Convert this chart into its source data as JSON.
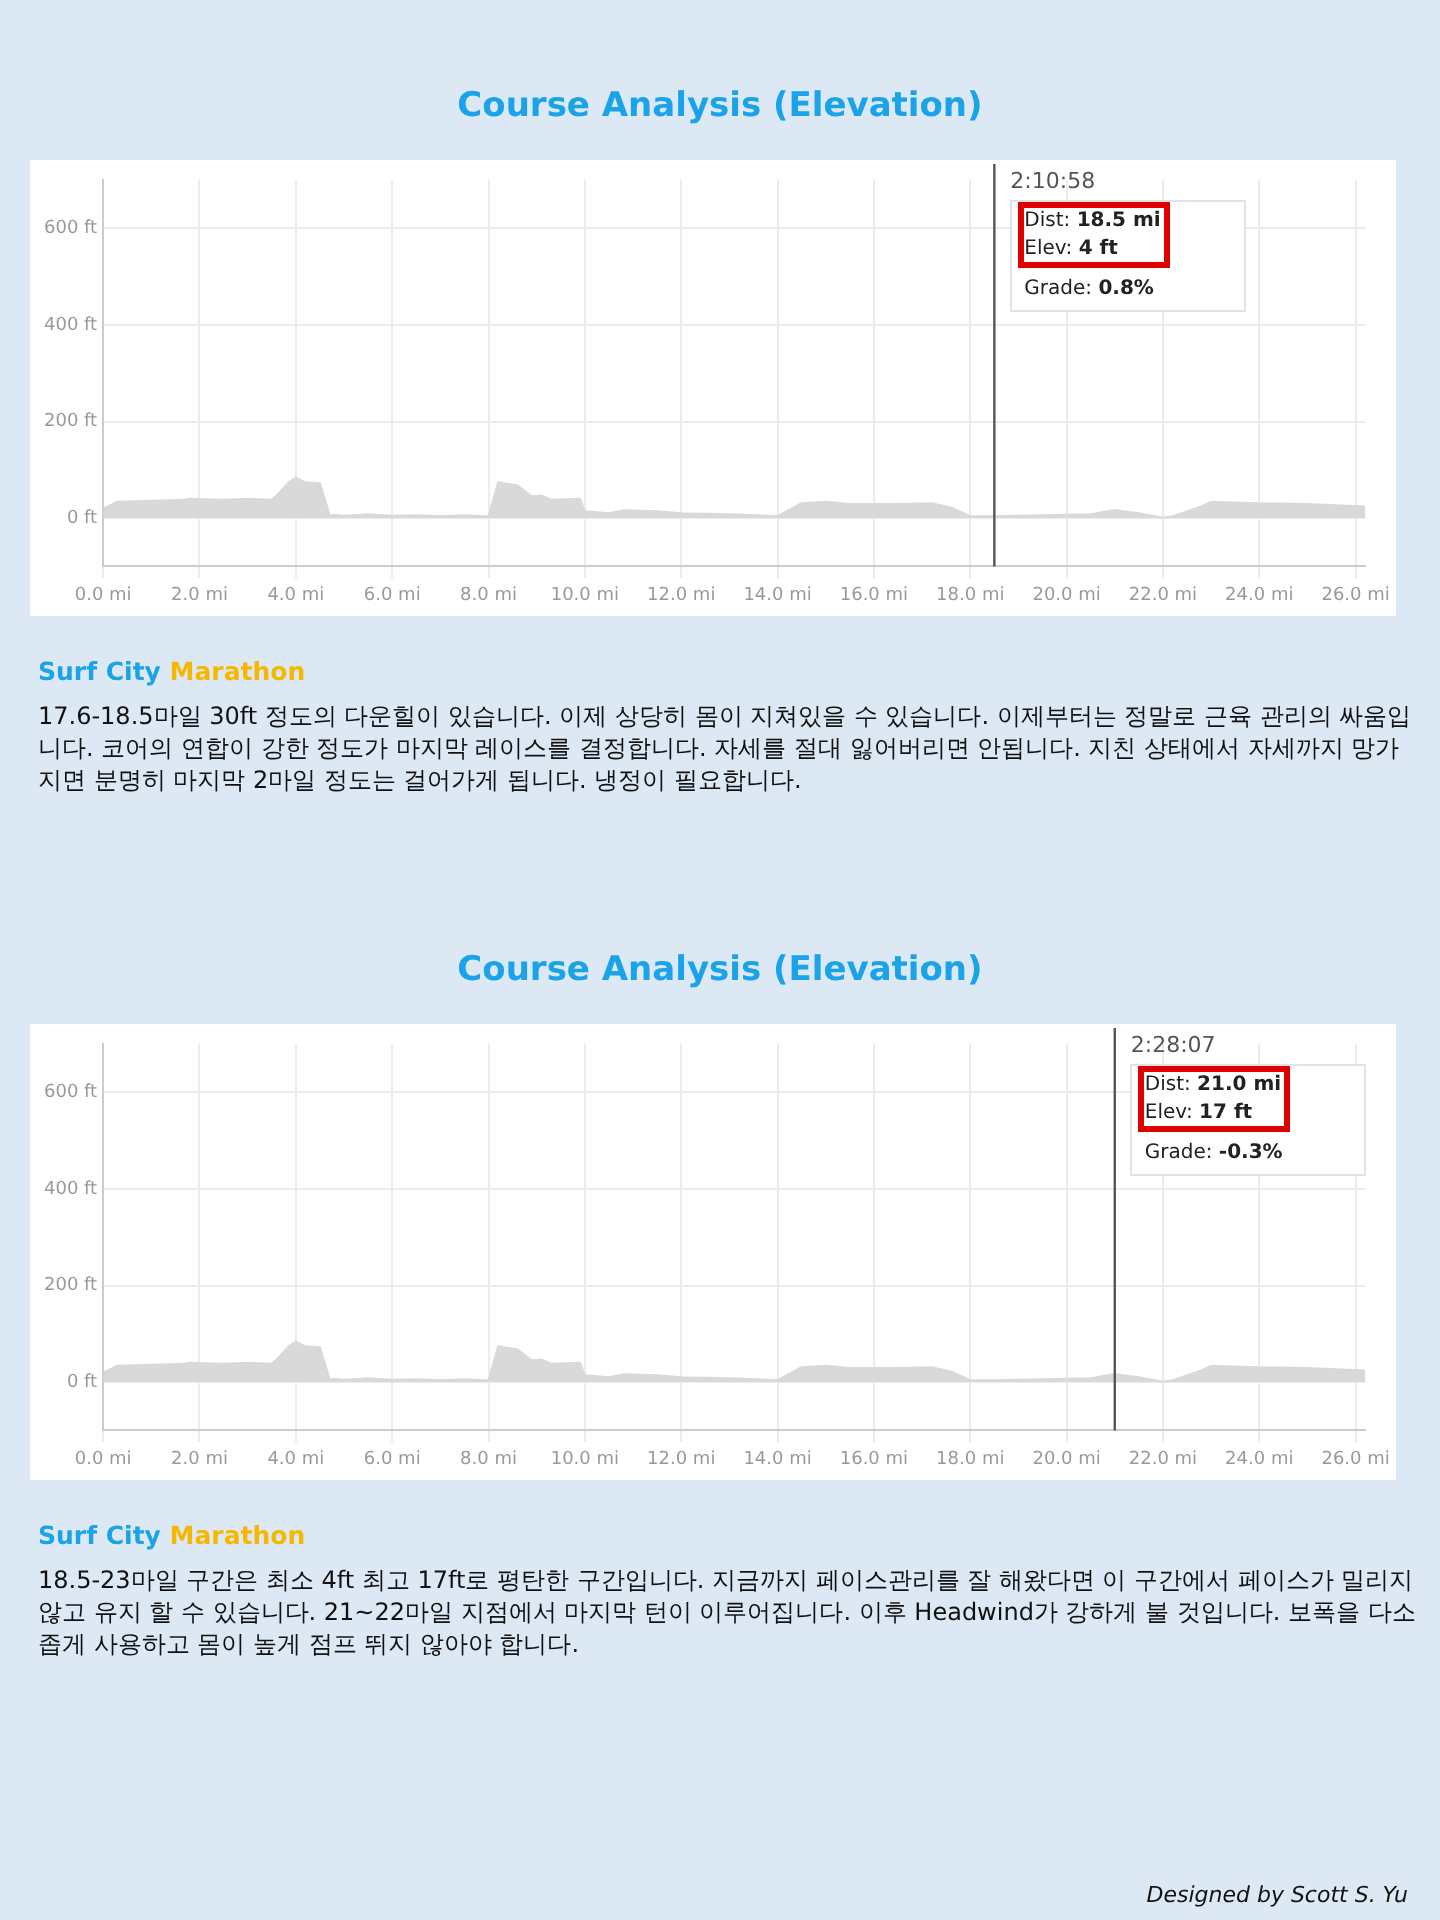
{
  "chart_data": [
    {
      "type": "area",
      "title": "Course Analysis (Elevation)",
      "x": [
        0,
        0.3,
        1.0,
        1.7,
        1.8,
        2.5,
        3.0,
        3.5,
        3.6,
        3.85,
        4.0,
        4.2,
        4.5,
        4.7,
        5.0,
        5.5,
        6.0,
        6.5,
        7.0,
        7.5,
        7.9,
        8.0,
        8.2,
        8.6,
        8.9,
        9.1,
        9.3,
        9.9,
        10.0,
        10.5,
        10.8,
        11.5,
        12.0,
        13.0,
        14.0,
        14.5,
        15.0,
        15.5,
        16.5,
        17.2,
        17.6,
        18.0,
        18.5,
        19.5,
        20.5,
        21.0,
        21.5,
        22.0,
        22.2,
        22.8,
        23.0,
        24.0,
        25.0,
        26.2
      ],
      "values": [
        20,
        34,
        36,
        38,
        40,
        38,
        40,
        38,
        47,
        74,
        84,
        74,
        72,
        7,
        5,
        8,
        5,
        6,
        4,
        6,
        4,
        4,
        74,
        68,
        45,
        47,
        38,
        40,
        14,
        10,
        16,
        14,
        10,
        8,
        4,
        31,
        34,
        29,
        29,
        31,
        22,
        4,
        4,
        6,
        8,
        17,
        10,
        1,
        4,
        24,
        34,
        31,
        29,
        24
      ],
      "color": "#d9d9d9",
      "xlim": [
        0,
        26.2
      ],
      "ylim": [
        -100,
        700
      ],
      "xticks": [
        {
          "value": 0,
          "label": "0.0 mi"
        },
        {
          "value": 2,
          "label": "2.0 mi"
        },
        {
          "value": 4,
          "label": "4.0 mi"
        },
        {
          "value": 6,
          "label": "6.0 mi"
        },
        {
          "value": 8,
          "label": "8.0 mi"
        },
        {
          "value": 10,
          "label": "10.0 mi"
        },
        {
          "value": 12,
          "label": "12.0 mi"
        },
        {
          "value": 14,
          "label": "14.0 mi"
        },
        {
          "value": 16,
          "label": "16.0 mi"
        },
        {
          "value": 18,
          "label": "18.0 mi"
        },
        {
          "value": 20,
          "label": "20.0 mi"
        },
        {
          "value": 22,
          "label": "22.0 mi"
        },
        {
          "value": 24,
          "label": "24.0 mi"
        },
        {
          "value": 26,
          "label": "26.0 mi"
        }
      ],
      "yticks": [
        {
          "value": 0,
          "label": "0 ft"
        },
        {
          "value": 200,
          "label": "200 ft"
        },
        {
          "value": 400,
          "label": "400 ft"
        },
        {
          "value": 600,
          "label": "600 ft"
        }
      ],
      "grid": true,
      "legend": false,
      "ref_lines": [
        {
          "axis": "x",
          "value": 18.5,
          "color": "#555555"
        }
      ],
      "annotations": [
        "2:10:58",
        "Dist: 18.5 mi",
        "Elev: 4 ft",
        "Grade: 0.8%",
        "Surf City",
        "Marathon",
        "17.6-18.5마일 30ft 정도의 다운힐이 있습니다. 이제 상당히 몸이 지쳐있을 수 있습니다. 이제부터는 정말로 근육 관리의 싸움입니다. 코어의 연합이 강한 정도가 마지막 레이스를 결정합니다. 자세를 절대 잃어버리면 안됩니다. 지친 상태에서 자세까지 망가지면 분명히 마지막 2마일 정도는 걸어가게 됩니다. 냉정이 필요합니다."
      ]
    },
    {
      "type": "area",
      "title": "Course Analysis (Elevation)",
      "x": [
        0,
        0.3,
        1.0,
        1.7,
        1.8,
        2.5,
        3.0,
        3.5,
        3.6,
        3.85,
        4.0,
        4.2,
        4.5,
        4.7,
        5.0,
        5.5,
        6.0,
        6.5,
        7.0,
        7.5,
        7.9,
        8.0,
        8.2,
        8.6,
        8.9,
        9.1,
        9.3,
        9.9,
        10.0,
        10.5,
        10.8,
        11.5,
        12.0,
        13.0,
        14.0,
        14.5,
        15.0,
        15.5,
        16.5,
        17.2,
        17.6,
        18.0,
        18.5,
        19.5,
        20.5,
        21.0,
        21.5,
        22.0,
        22.2,
        22.8,
        23.0,
        24.0,
        25.0,
        26.2
      ],
      "values": [
        20,
        34,
        36,
        38,
        40,
        38,
        40,
        38,
        47,
        74,
        84,
        74,
        72,
        7,
        5,
        8,
        5,
        6,
        4,
        6,
        4,
        4,
        74,
        68,
        45,
        47,
        38,
        40,
        14,
        10,
        16,
        14,
        10,
        8,
        4,
        31,
        34,
        29,
        29,
        31,
        22,
        4,
        4,
        6,
        8,
        17,
        10,
        1,
        4,
        24,
        34,
        31,
        29,
        24
      ],
      "color": "#d9d9d9",
      "xlim": [
        0,
        26.2
      ],
      "ylim": [
        -100,
        700
      ],
      "xticks": [
        {
          "value": 0,
          "label": "0.0 mi"
        },
        {
          "value": 2,
          "label": "2.0 mi"
        },
        {
          "value": 4,
          "label": "4.0 mi"
        },
        {
          "value": 6,
          "label": "6.0 mi"
        },
        {
          "value": 8,
          "label": "8.0 mi"
        },
        {
          "value": 10,
          "label": "10.0 mi"
        },
        {
          "value": 12,
          "label": "12.0 mi"
        },
        {
          "value": 14,
          "label": "14.0 mi"
        },
        {
          "value": 16,
          "label": "16.0 mi"
        },
        {
          "value": 18,
          "label": "18.0 mi"
        },
        {
          "value": 20,
          "label": "20.0 mi"
        },
        {
          "value": 22,
          "label": "22.0 mi"
        },
        {
          "value": 24,
          "label": "24.0 mi"
        },
        {
          "value": 26,
          "label": "26.0 mi"
        }
      ],
      "yticks": [
        {
          "value": 0,
          "label": "0 ft"
        },
        {
          "value": 200,
          "label": "200 ft"
        },
        {
          "value": 400,
          "label": "400 ft"
        },
        {
          "value": 600,
          "label": "600 ft"
        }
      ],
      "grid": true,
      "legend": false,
      "ref_lines": [
        {
          "axis": "x",
          "value": 21.0,
          "color": "#555555"
        }
      ],
      "annotations": [
        "2:28:07",
        "Dist: 21.0 mi",
        "Elev: 17 ft",
        "Grade: -0.3%",
        "Surf City",
        "Marathon",
        "18.5-23마일 구간은 최소 4ft 최고 17ft로 평탄한 구간입니다. 지금까지 페이스관리를 잘 해왔다면 이 구간에서 페이스가 밀리지 않고 유지 할 수 있습니다.  21~22마일 지점에서 마지막 턴이 이루어집니다. 이후 Headwind가 강하게 불 것입니다. 보폭을 다소 좁게 사용하고 몸이 높게 점프 뛰지 않아야 합니다.",
        "Designed by Scott S. Yu"
      ]
    }
  ]
}
